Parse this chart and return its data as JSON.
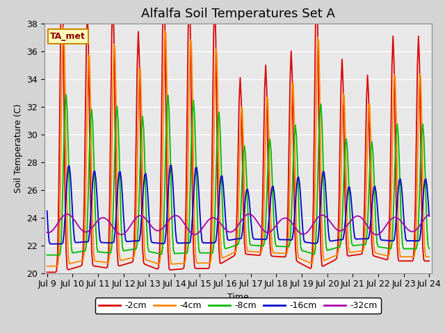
{
  "title": "Alfalfa Soil Temperatures Set A",
  "xlabel": "Time",
  "ylabel": "Soil Temperature (C)",
  "ylim": [
    20,
    38
  ],
  "annotation_text": "TA_met",
  "legend_labels": [
    "-2cm",
    "-4cm",
    "-8cm",
    "-16cm",
    "-32cm"
  ],
  "legend_colors": [
    "#dd0000",
    "#ff8800",
    "#00bb00",
    "#0000cc",
    "#aa00aa"
  ],
  "bg_color": "#d4d4d4",
  "plot_bg_color": "#e8e8e8",
  "title_fontsize": 13,
  "axis_label_fontsize": 9,
  "tick_fontsize": 9,
  "start_day": 9,
  "end_day": 24
}
